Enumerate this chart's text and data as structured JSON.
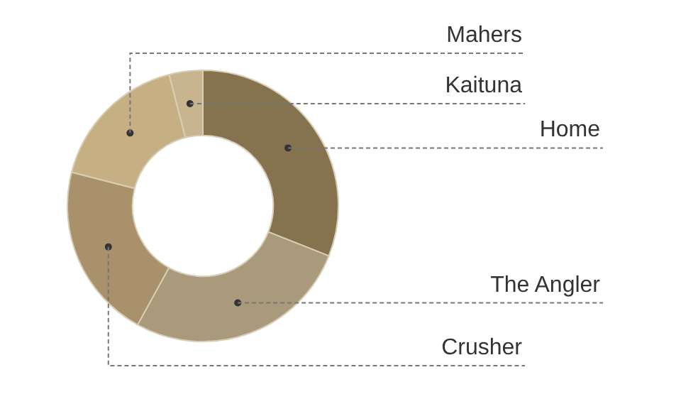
{
  "chart_data": {
    "type": "donut",
    "categories": [
      "Home",
      "The Angler",
      "Crusher",
      "Mahers",
      "Kaituna"
    ],
    "values": [
      31,
      27,
      21,
      17,
      4
    ],
    "colors": [
      "#857350",
      "#aa9a7c",
      "#a8916b",
      "#c6b083",
      "#c8b48f"
    ],
    "legend": false
  }
}
